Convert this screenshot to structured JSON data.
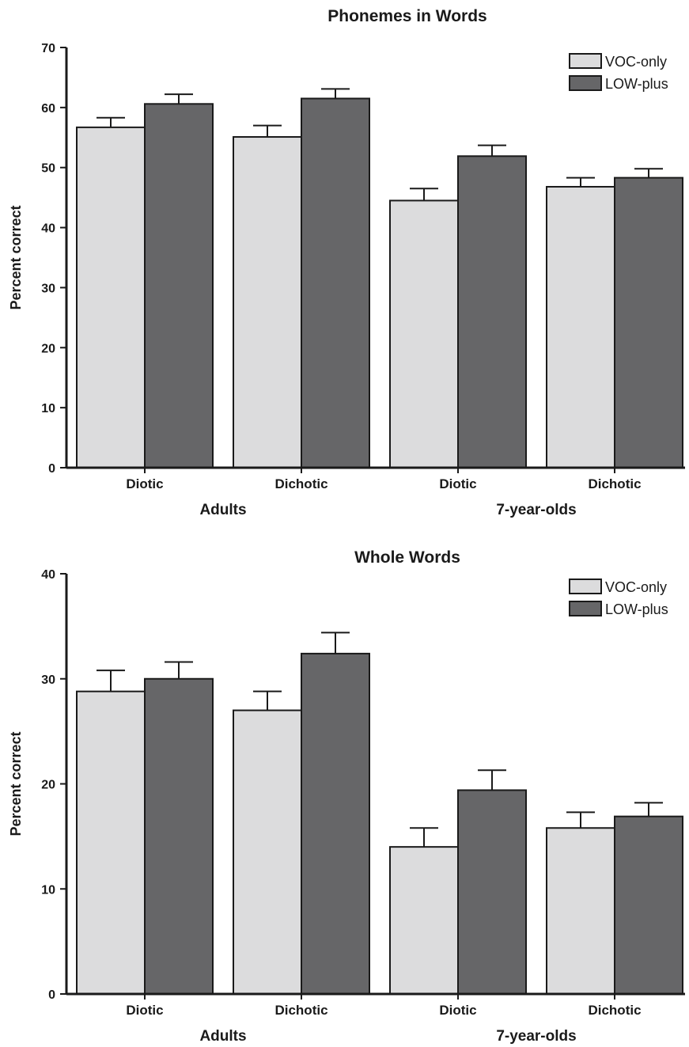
{
  "chart_data": [
    {
      "type": "bar",
      "title": "Phonemes in Words",
      "ylabel": "Percent correct",
      "ylim": [
        0,
        70
      ],
      "yticks": [
        0,
        10,
        20,
        30,
        40,
        50,
        60,
        70
      ],
      "categories": [
        "Diotic",
        "Dichotic",
        "Diotic",
        "Dichotic"
      ],
      "groups": [
        "Adults",
        "7-year-olds"
      ],
      "series": [
        {
          "name": "VOC-only",
          "color": "#dcdcdd",
          "values": [
            56.7,
            55.1,
            44.5,
            46.8
          ],
          "errors": [
            1.6,
            1.9,
            2.0,
            1.5
          ]
        },
        {
          "name": "LOW-plus",
          "color": "#666668",
          "values": [
            60.6,
            61.5,
            51.9,
            48.3
          ],
          "errors": [
            1.6,
            1.6,
            1.8,
            1.5
          ]
        }
      ],
      "legend": "top-right"
    },
    {
      "type": "bar",
      "title": "Whole Words",
      "ylabel": "Percent correct",
      "ylim": [
        0,
        40
      ],
      "yticks": [
        0,
        10,
        20,
        30,
        40
      ],
      "categories": [
        "Diotic",
        "Dichotic",
        "Diotic",
        "Dichotic"
      ],
      "groups": [
        "Adults",
        "7-year-olds"
      ],
      "series": [
        {
          "name": "VOC-only",
          "color": "#dcdcdd",
          "values": [
            28.8,
            27.0,
            14.0,
            15.8
          ],
          "errors": [
            2.0,
            1.8,
            1.8,
            1.5
          ]
        },
        {
          "name": "LOW-plus",
          "color": "#666668",
          "values": [
            30.0,
            32.4,
            19.4,
            16.9
          ],
          "errors": [
            1.6,
            2.0,
            1.9,
            1.3
          ]
        }
      ],
      "legend": "top-right"
    }
  ]
}
